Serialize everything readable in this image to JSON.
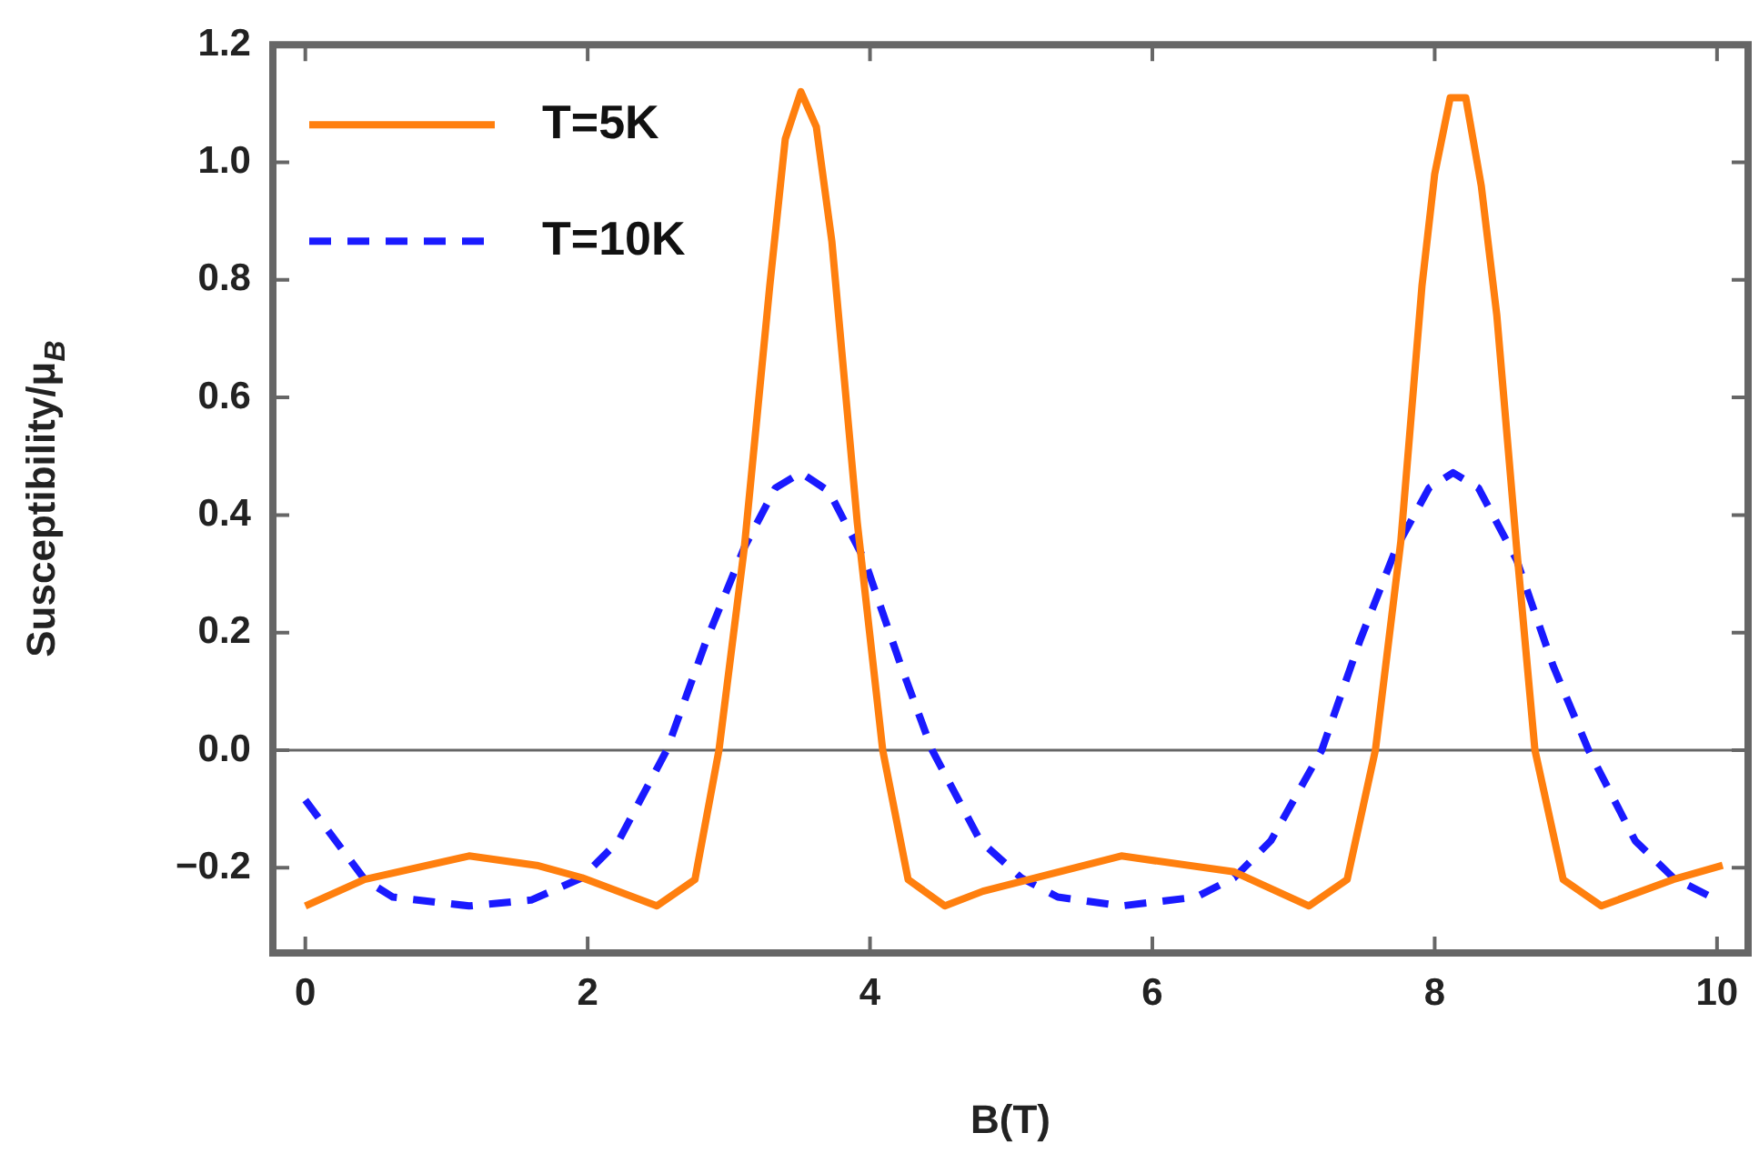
{
  "chart_data": {
    "type": "line",
    "xlabel": "B(T)",
    "ylabel": "Susceptibility/μ$_{B}$",
    "xlim": [
      -0.23,
      10.22
    ],
    "ylim": [
      -0.345,
      1.2
    ],
    "xticks": [
      0,
      2,
      4,
      6,
      8,
      10
    ],
    "yticks": [
      {
        "value": -0.2,
        "label": "−0.2"
      },
      {
        "value": 0,
        "label": "0.0"
      },
      {
        "value": 0.2,
        "label": "0.2"
      },
      {
        "value": 0.4,
        "label": "0.4"
      },
      {
        "value": 0.6,
        "label": "0.6"
      },
      {
        "value": 0.8,
        "label": "0.8"
      },
      {
        "value": 1.0,
        "label": "1.0"
      },
      {
        "value": 1.2,
        "label": "1.2"
      }
    ],
    "grid": false,
    "legend": "top left",
    "marker": "none",
    "ref_lines": [
      {
        "axis": "y",
        "value": 0,
        "color": "#666666"
      }
    ],
    "series": [
      {
        "name": "T=5K",
        "color": "#ff7f0e",
        "line_style": "solid",
        "x": [
          0,
          0.42,
          1.16,
          1.64,
          1.96,
          2.49,
          2.76,
          2.93,
          3.11,
          3.29,
          3.4,
          3.51,
          3.62,
          3.73,
          3.91,
          4.09,
          4.27,
          4.53,
          4.8,
          5.78,
          6.58,
          7.11,
          7.38,
          7.58,
          7.76,
          7.91,
          8.0,
          8.11,
          8.22,
          8.33,
          8.44,
          8.58,
          8.71,
          8.91,
          9.18,
          9.69,
          10.04
        ],
        "values": [
          -0.265,
          -0.22,
          -0.18,
          -0.196,
          -0.217,
          -0.265,
          -0.22,
          0,
          0.345,
          0.79,
          1.04,
          1.12,
          1.06,
          0.865,
          0.387,
          0,
          -0.22,
          -0.265,
          -0.24,
          -0.18,
          -0.207,
          -0.265,
          -0.22,
          0,
          0.355,
          0.79,
          0.98,
          1.11,
          1.11,
          0.96,
          0.74,
          0.345,
          0,
          -0.22,
          -0.265,
          -0.22,
          -0.196
        ]
      },
      {
        "name": "T=10K",
        "color": "#1a1aff",
        "line_style": "dashed",
        "x": [
          0,
          0.42,
          0.62,
          1.16,
          1.6,
          1.96,
          2.22,
          2.56,
          2.84,
          3.11,
          3.33,
          3.51,
          3.71,
          3.96,
          4.22,
          4.44,
          4.78,
          5.07,
          5.33,
          5.78,
          6.31,
          6.58,
          6.84,
          7.2,
          7.47,
          7.73,
          7.96,
          8.13,
          8.31,
          8.58,
          8.84,
          9.09,
          9.42,
          9.69,
          9.96
        ],
        "values": [
          -0.085,
          -0.22,
          -0.25,
          -0.265,
          -0.255,
          -0.217,
          -0.154,
          0,
          0.186,
          0.345,
          0.446,
          0.472,
          0.44,
          0.324,
          0.143,
          0,
          -0.154,
          -0.217,
          -0.25,
          -0.265,
          -0.25,
          -0.217,
          -0.154,
          0,
          0.186,
          0.345,
          0.446,
          0.472,
          0.446,
          0.324,
          0.143,
          0,
          -0.154,
          -0.217,
          -0.25
        ]
      }
    ]
  }
}
